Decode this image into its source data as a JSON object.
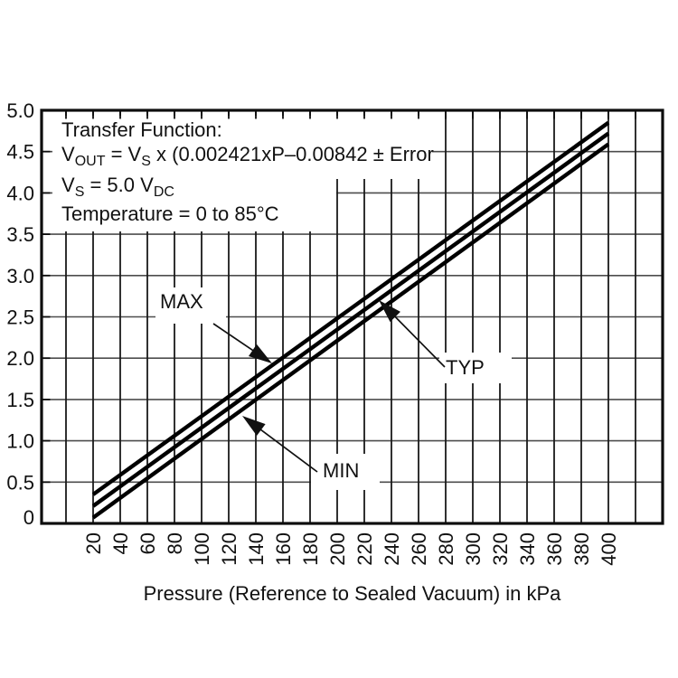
{
  "figure": {
    "annotation_lines": [
      {
        "segments": [
          {
            "t": "Transfer Function:"
          }
        ]
      },
      {
        "segments": [
          {
            "t": "V"
          },
          {
            "t": "OUT",
            "sub": true
          },
          {
            "t": " = V"
          },
          {
            "t": "S",
            "sub": true
          },
          {
            "t": " x (0.002421xP–0.00842 ± Error"
          }
        ]
      },
      {
        "segments": [
          {
            "t": "V"
          },
          {
            "t": "S",
            "sub": true
          },
          {
            "t": " = 5.0 V"
          },
          {
            "t": "DC",
            "sub": true
          }
        ]
      },
      {
        "segments": [
          {
            "t": "Temperature = 0 to 85°C"
          }
        ]
      }
    ]
  },
  "chart_data": {
    "type": "line",
    "title": "",
    "xlabel": "Pressure (Reference to Sealed Vacuum) in kPa",
    "ylabel": "",
    "xlim_data": [
      20,
      400
    ],
    "ylim": [
      0,
      5.0
    ],
    "grid": true,
    "legend_position": "inline-callouts",
    "x_ticks": [
      20,
      40,
      60,
      80,
      100,
      120,
      140,
      160,
      180,
      200,
      220,
      240,
      260,
      280,
      300,
      320,
      340,
      360,
      380,
      400
    ],
    "y_ticks": [
      {
        "v": 5.0,
        "label": "5.0"
      },
      {
        "v": 4.5,
        "label": "4.5"
      },
      {
        "v": 4.0,
        "label": "4.0"
      },
      {
        "v": 3.5,
        "label": "3.5"
      },
      {
        "v": 3.0,
        "label": "3.0"
      },
      {
        "v": 2.5,
        "label": "2.5"
      },
      {
        "v": 2.0,
        "label": "2.0"
      },
      {
        "v": 1.5,
        "label": "1.5"
      },
      {
        "v": 1.0,
        "label": "1.0"
      },
      {
        "v": 0.5,
        "label": "0.5"
      },
      {
        "v": 0,
        "label": "0"
      }
    ],
    "x_gridlines": [
      0,
      20,
      40,
      60,
      80,
      100,
      120,
      140,
      160,
      180,
      200,
      220,
      240,
      260,
      280,
      300,
      320,
      340,
      360,
      380,
      400,
      420
    ],
    "y_gridlines": [
      0.5,
      1.0,
      1.5,
      2.0,
      2.5,
      3.0,
      3.5,
      4.0,
      4.5
    ],
    "colors": {
      "line": "#000000",
      "grid_vertical": "#1a1a1a",
      "grid_horizontal": "#4d4d4d",
      "text": "#111111",
      "background": "#ffffff"
    },
    "series": [
      {
        "name": "MAX",
        "points": [
          [
            20,
            0.35
          ],
          [
            400,
            4.85
          ]
        ]
      },
      {
        "name": "TYP",
        "points": [
          [
            20,
            0.21
          ],
          [
            400,
            4.72
          ]
        ]
      },
      {
        "name": "MIN",
        "points": [
          [
            20,
            0.07
          ],
          [
            400,
            4.59
          ]
        ]
      }
    ]
  }
}
